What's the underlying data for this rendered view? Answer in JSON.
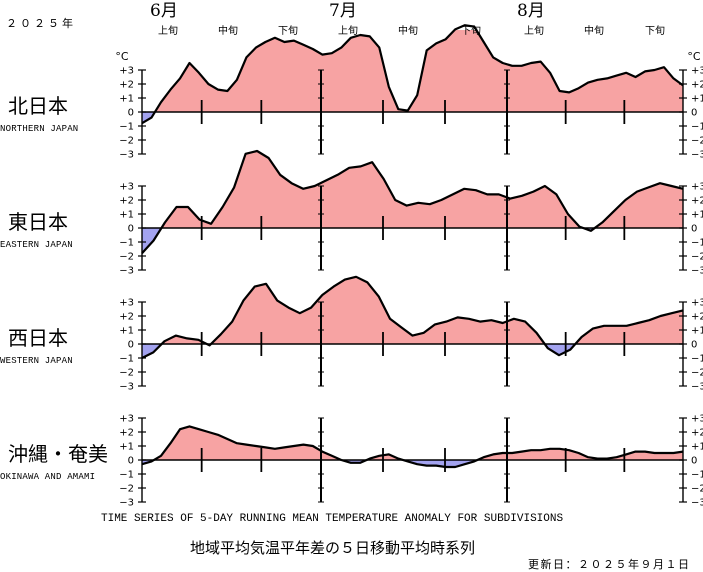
{
  "year_label": "２０２５年",
  "months": [
    "6月",
    "7月",
    "8月"
  ],
  "dekads": [
    "上旬",
    "中旬",
    "下旬"
  ],
  "unit": "°C",
  "title_en": "TIME SERIES OF 5-DAY RUNNING MEAN TEMPERATURE ANOMALY FOR SUBDIVISIONS",
  "title_ja": "地域平均気温平年差の５日移動平均時系列",
  "updated": "更新日：２０２５年９月１日",
  "colors": {
    "positive": "#f7a3a3",
    "negative": "#a3a3f0",
    "line": "#000000"
  },
  "chart_data": {
    "type": "area",
    "x_start": "2025-06-01",
    "x_end": "2025-08-31",
    "ylim": [
      -3,
      3
    ],
    "yticks": [
      "+3",
      "+2",
      "+1",
      "0",
      "−1",
      "−2",
      "−3"
    ],
    "regions": [
      {
        "name_ja": "北日本",
        "name_en": "NORTHERN JAPAN",
        "y": [
          -0.8,
          -0.4,
          0.7,
          1.6,
          2.4,
          3.5,
          2.8,
          2.0,
          1.6,
          1.5,
          2.3,
          3.9,
          4.6,
          5.0,
          5.3,
          5.0,
          5.1,
          4.8,
          4.5,
          4.1,
          4.2,
          4.6,
          5.3,
          5.5,
          5.4,
          4.6,
          1.8,
          0.2,
          0.1,
          1.2,
          4.4,
          4.9,
          5.2,
          5.9,
          6.2,
          6.1,
          5.0,
          3.9,
          3.5,
          3.3,
          3.3,
          3.5,
          3.6,
          2.8,
          1.5,
          1.4,
          1.7,
          2.1,
          2.3,
          2.4,
          2.6,
          2.8,
          2.5,
          2.9,
          3.0,
          3.2,
          2.4,
          1.9
        ]
      },
      {
        "name_ja": "東日本",
        "name_en": "EASTERN JAPAN",
        "y": [
          -1.8,
          -0.9,
          0.4,
          1.5,
          1.5,
          0.6,
          0.3,
          1.5,
          2.9,
          5.3,
          5.5,
          5.0,
          3.8,
          3.2,
          2.8,
          3.0,
          3.4,
          3.8,
          4.3,
          4.4,
          4.7,
          3.5,
          2.0,
          1.6,
          1.8,
          1.7,
          2.0,
          2.4,
          2.8,
          2.7,
          2.4,
          2.4,
          2.1,
          2.3,
          2.6,
          3.0,
          2.4,
          1.0,
          0.1,
          -0.2,
          0.4,
          1.2,
          2.0,
          2.6,
          2.9,
          3.2,
          3.0,
          2.8
        ]
      },
      {
        "name_ja": "西日本",
        "name_en": "WESTERN JAPAN",
        "y": [
          -1.0,
          -0.6,
          0.2,
          0.6,
          0.4,
          0.3,
          -0.1,
          0.7,
          1.6,
          3.1,
          4.1,
          4.3,
          3.1,
          2.6,
          2.2,
          2.6,
          3.5,
          4.1,
          4.6,
          4.8,
          4.4,
          3.4,
          1.8,
          1.2,
          0.6,
          0.8,
          1.4,
          1.6,
          1.9,
          1.8,
          1.6,
          1.7,
          1.5,
          1.8,
          1.6,
          0.8,
          -0.3,
          -0.8,
          -0.4,
          0.5,
          1.1,
          1.3,
          1.3,
          1.3,
          1.5,
          1.7,
          2.0,
          2.2,
          2.4
        ]
      },
      {
        "name_ja": "沖縄・奄美",
        "name_en": "OKINAWA AND AMAMI",
        "y": [
          -0.3,
          -0.1,
          0.3,
          1.2,
          2.2,
          2.4,
          2.2,
          2.0,
          1.8,
          1.5,
          1.2,
          1.1,
          1.0,
          0.9,
          0.8,
          0.9,
          1.0,
          1.1,
          1.0,
          0.6,
          0.3,
          0.0,
          -0.2,
          -0.2,
          0.1,
          0.3,
          0.4,
          0.1,
          -0.1,
          -0.3,
          -0.4,
          -0.4,
          -0.5,
          -0.5,
          -0.3,
          -0.1,
          0.2,
          0.4,
          0.5,
          0.5,
          0.6,
          0.7,
          0.7,
          0.8,
          0.8,
          0.7,
          0.5,
          0.2,
          0.1,
          0.1,
          0.2,
          0.4,
          0.6,
          0.6,
          0.5,
          0.5,
          0.5,
          0.6
        ]
      }
    ]
  }
}
